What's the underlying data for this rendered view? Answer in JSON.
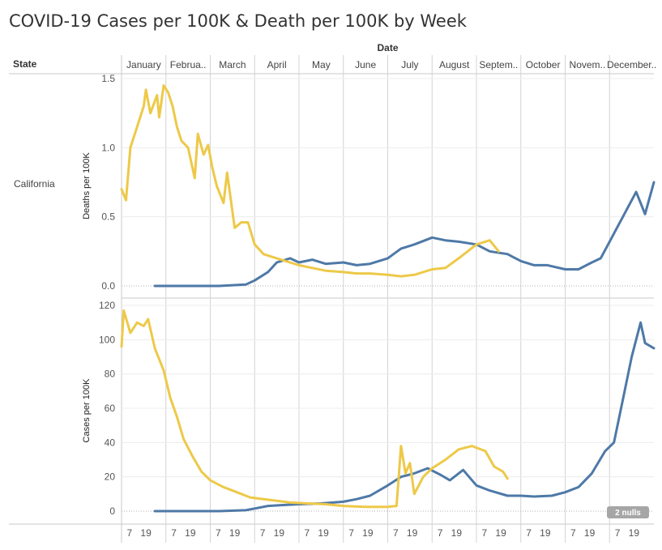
{
  "title": "COVID-19 Cases per 100K & Death per 100K by Week",
  "column_header": "Date",
  "row_header": "State",
  "state": "California",
  "months": [
    "January",
    "Februa..",
    "March",
    "April",
    "May",
    "June",
    "July",
    "August",
    "Septem..",
    "October",
    "Novem..",
    "December.."
  ],
  "day_ticks": [
    "7",
    "19"
  ],
  "null_badge": "2 nulls",
  "colors": {
    "series_a": "#4e79a7",
    "series_b": "#edc948"
  },
  "chart_data": [
    {
      "type": "line",
      "ylabel": "Deaths per 100K",
      "ylim": [
        0,
        1.5
      ],
      "yticks": [
        "0.0",
        "0.5",
        "1.0",
        "1.5"
      ],
      "x_unit": "month (fractional, 0 = start of January)",
      "series": [
        {
          "color": "#4e79a7",
          "points": [
            [
              0.75,
              0.0
            ],
            [
              1.5,
              0.0
            ],
            [
              2.2,
              0.0
            ],
            [
              2.8,
              0.01
            ],
            [
              3.0,
              0.04
            ],
            [
              3.3,
              0.1
            ],
            [
              3.5,
              0.17
            ],
            [
              3.8,
              0.2
            ],
            [
              4.0,
              0.17
            ],
            [
              4.3,
              0.19
            ],
            [
              4.6,
              0.16
            ],
            [
              5.0,
              0.17
            ],
            [
              5.3,
              0.15
            ],
            [
              5.6,
              0.16
            ],
            [
              6.0,
              0.2
            ],
            [
              6.3,
              0.27
            ],
            [
              6.6,
              0.3
            ],
            [
              7.0,
              0.35
            ],
            [
              7.3,
              0.33
            ],
            [
              7.6,
              0.32
            ],
            [
              8.0,
              0.3
            ],
            [
              8.3,
              0.25
            ],
            [
              8.7,
              0.23
            ],
            [
              9.0,
              0.18
            ],
            [
              9.3,
              0.15
            ],
            [
              9.6,
              0.15
            ],
            [
              10.0,
              0.12
            ],
            [
              10.3,
              0.12
            ],
            [
              10.6,
              0.17
            ],
            [
              10.8,
              0.2
            ],
            [
              11.0,
              0.32
            ],
            [
              11.3,
              0.5
            ],
            [
              11.6,
              0.68
            ],
            [
              11.8,
              0.52
            ],
            [
              12.0,
              0.75
            ]
          ]
        },
        {
          "color": "#edc948",
          "points": [
            [
              0.0,
              0.7
            ],
            [
              0.1,
              0.62
            ],
            [
              0.2,
              1.0
            ],
            [
              0.35,
              1.15
            ],
            [
              0.5,
              1.3
            ],
            [
              0.55,
              1.42
            ],
            [
              0.65,
              1.25
            ],
            [
              0.8,
              1.38
            ],
            [
              0.85,
              1.22
            ],
            [
              0.95,
              1.45
            ],
            [
              1.05,
              1.4
            ],
            [
              1.15,
              1.3
            ],
            [
              1.25,
              1.15
            ],
            [
              1.35,
              1.05
            ],
            [
              1.5,
              1.0
            ],
            [
              1.65,
              0.78
            ],
            [
              1.72,
              1.1
            ],
            [
              1.85,
              0.95
            ],
            [
              1.95,
              1.02
            ],
            [
              2.05,
              0.85
            ],
            [
              2.15,
              0.72
            ],
            [
              2.3,
              0.6
            ],
            [
              2.38,
              0.82
            ],
            [
              2.55,
              0.42
            ],
            [
              2.7,
              0.46
            ],
            [
              2.85,
              0.46
            ],
            [
              3.0,
              0.3
            ],
            [
              3.2,
              0.23
            ],
            [
              3.5,
              0.2
            ],
            [
              3.8,
              0.17
            ],
            [
              4.0,
              0.15
            ],
            [
              4.3,
              0.13
            ],
            [
              4.6,
              0.11
            ],
            [
              5.0,
              0.1
            ],
            [
              5.3,
              0.09
            ],
            [
              5.6,
              0.09
            ],
            [
              6.0,
              0.08
            ],
            [
              6.3,
              0.07
            ],
            [
              6.6,
              0.08
            ],
            [
              7.0,
              0.12
            ],
            [
              7.3,
              0.13
            ],
            [
              7.6,
              0.2
            ],
            [
              8.0,
              0.3
            ],
            [
              8.3,
              0.33
            ],
            [
              8.5,
              0.25
            ]
          ]
        }
      ]
    },
    {
      "type": "line",
      "ylabel": "Cases per 100K",
      "ylim": [
        0,
        120
      ],
      "yticks": [
        "0",
        "20",
        "40",
        "60",
        "80",
        "100",
        "120"
      ],
      "x_unit": "month (fractional, 0 = start of January)",
      "series": [
        {
          "color": "#4e79a7",
          "points": [
            [
              0.75,
              0.0
            ],
            [
              1.5,
              0.0
            ],
            [
              2.2,
              0.0
            ],
            [
              2.8,
              0.5
            ],
            [
              3.0,
              1.5
            ],
            [
              3.3,
              3
            ],
            [
              3.6,
              3.5
            ],
            [
              4.0,
              4
            ],
            [
              4.5,
              4.5
            ],
            [
              5.0,
              5.5
            ],
            [
              5.3,
              7
            ],
            [
              5.6,
              9
            ],
            [
              6.0,
              15
            ],
            [
              6.3,
              20
            ],
            [
              6.6,
              22
            ],
            [
              6.9,
              25
            ],
            [
              7.2,
              21
            ],
            [
              7.4,
              18
            ],
            [
              7.7,
              24
            ],
            [
              8.0,
              15
            ],
            [
              8.3,
              12
            ],
            [
              8.7,
              9
            ],
            [
              9.0,
              9
            ],
            [
              9.3,
              8.5
            ],
            [
              9.7,
              9
            ],
            [
              10.0,
              11
            ],
            [
              10.3,
              14
            ],
            [
              10.6,
              22
            ],
            [
              10.9,
              35
            ],
            [
              11.1,
              40
            ],
            [
              11.3,
              65
            ],
            [
              11.5,
              90
            ],
            [
              11.7,
              110
            ],
            [
              11.8,
              98
            ],
            [
              12.0,
              95
            ]
          ]
        },
        {
          "color": "#edc948",
          "points": [
            [
              0.0,
              96
            ],
            [
              0.05,
              117
            ],
            [
              0.2,
              104
            ],
            [
              0.35,
              110
            ],
            [
              0.5,
              108
            ],
            [
              0.6,
              112
            ],
            [
              0.75,
              95
            ],
            [
              0.95,
              82
            ],
            [
              1.1,
              66
            ],
            [
              1.25,
              55
            ],
            [
              1.4,
              42
            ],
            [
              1.6,
              32
            ],
            [
              1.8,
              23
            ],
            [
              2.0,
              18
            ],
            [
              2.3,
              14
            ],
            [
              2.6,
              11
            ],
            [
              2.9,
              8
            ],
            [
              3.2,
              7
            ],
            [
              3.5,
              6
            ],
            [
              3.8,
              5
            ],
            [
              4.2,
              4.5
            ],
            [
              4.6,
              4
            ],
            [
              5.0,
              3
            ],
            [
              5.5,
              2.5
            ],
            [
              6.0,
              2.5
            ],
            [
              6.2,
              3
            ],
            [
              6.3,
              38
            ],
            [
              6.4,
              22
            ],
            [
              6.5,
              28
            ],
            [
              6.6,
              10
            ],
            [
              6.8,
              20
            ],
            [
              7.0,
              25
            ],
            [
              7.3,
              30
            ],
            [
              7.6,
              36
            ],
            [
              7.9,
              38
            ],
            [
              8.2,
              35
            ],
            [
              8.4,
              26
            ],
            [
              8.6,
              23
            ],
            [
              8.7,
              19
            ]
          ]
        }
      ]
    }
  ]
}
